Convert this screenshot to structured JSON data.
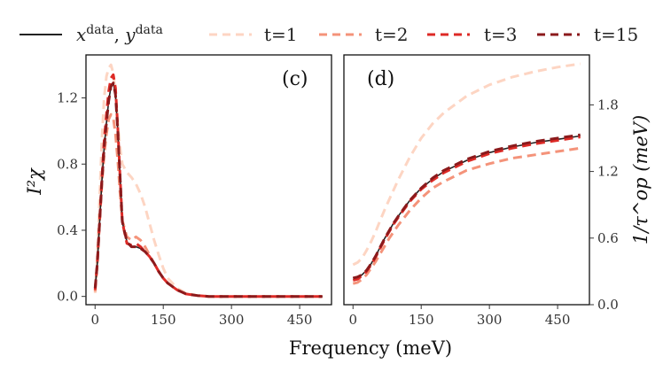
{
  "chart_data": [
    {
      "type": "line",
      "panel": "(c)",
      "xlabel": "Frequency (meV)",
      "ylabel": "I²χ",
      "xlim": [
        -20,
        520
      ],
      "ylim": [
        -0.05,
        1.46
      ],
      "xticks": [
        0,
        150,
        300,
        450
      ],
      "yticks": [
        0.0,
        0.4,
        0.8,
        1.2
      ],
      "ytick_labels": [
        "0.0",
        "0.4",
        "0.8",
        "1.2"
      ],
      "series": [
        {
          "name": "x^data, y^data",
          "color": "#222222",
          "dashed": false,
          "x": [
            0,
            5,
            10,
            15,
            20,
            25,
            30,
            35,
            40,
            45,
            50,
            55,
            60,
            70,
            80,
            90,
            100,
            110,
            120,
            130,
            140,
            150,
            160,
            180,
            200,
            225,
            250,
            300,
            400,
            500
          ],
          "y": [
            0.05,
            0.2,
            0.45,
            0.7,
            0.9,
            1.05,
            1.18,
            1.27,
            1.29,
            1.22,
            1.0,
            0.72,
            0.45,
            0.33,
            0.3,
            0.3,
            0.29,
            0.27,
            0.24,
            0.2,
            0.15,
            0.11,
            0.08,
            0.04,
            0.015,
            0.005,
            0.0,
            0.0,
            0.0,
            0.0
          ]
        },
        {
          "name": "t=1",
          "color": "#fdd5c3",
          "dashed": true,
          "x": [
            0,
            5,
            10,
            15,
            20,
            25,
            30,
            35,
            40,
            45,
            50,
            55,
            60,
            70,
            80,
            90,
            100,
            110,
            120,
            130,
            140,
            150,
            160,
            180,
            200,
            225,
            250,
            300,
            400,
            500
          ],
          "y": [
            0.02,
            0.25,
            0.6,
            0.95,
            1.2,
            1.33,
            1.38,
            1.4,
            1.35,
            1.22,
            1.05,
            0.9,
            0.8,
            0.75,
            0.72,
            0.68,
            0.62,
            0.54,
            0.44,
            0.34,
            0.25,
            0.17,
            0.11,
            0.05,
            0.02,
            0.005,
            0.0,
            0.0,
            0.0,
            0.0
          ]
        },
        {
          "name": "t=2",
          "color": "#f4937a",
          "dashed": true,
          "x": [
            0,
            5,
            10,
            15,
            20,
            25,
            30,
            35,
            40,
            45,
            50,
            55,
            60,
            70,
            80,
            90,
            100,
            110,
            120,
            130,
            140,
            150,
            160,
            180,
            200,
            225,
            250,
            300,
            400,
            500
          ],
          "y": [
            0.03,
            0.2,
            0.45,
            0.68,
            0.85,
            0.98,
            1.07,
            1.1,
            1.08,
            0.98,
            0.82,
            0.62,
            0.46,
            0.36,
            0.34,
            0.36,
            0.34,
            0.3,
            0.25,
            0.2,
            0.15,
            0.11,
            0.08,
            0.04,
            0.015,
            0.005,
            0.0,
            0.0,
            0.0,
            0.0
          ]
        },
        {
          "name": "t=3",
          "color": "#dd2a26",
          "dashed": true,
          "x": [
            0,
            5,
            10,
            15,
            20,
            25,
            30,
            35,
            40,
            45,
            50,
            55,
            60,
            70,
            80,
            90,
            100,
            110,
            120,
            130,
            140,
            150,
            160,
            180,
            200,
            225,
            250,
            300,
            400,
            500
          ],
          "y": [
            0.04,
            0.2,
            0.46,
            0.72,
            0.94,
            1.1,
            1.24,
            1.32,
            1.34,
            1.26,
            1.02,
            0.72,
            0.45,
            0.32,
            0.31,
            0.32,
            0.3,
            0.27,
            0.24,
            0.2,
            0.15,
            0.11,
            0.08,
            0.04,
            0.015,
            0.005,
            0.0,
            0.0,
            0.0,
            0.0
          ]
        },
        {
          "name": "t=15",
          "color": "#8b1a1c",
          "dashed": true,
          "x": [
            0,
            5,
            10,
            15,
            20,
            25,
            30,
            35,
            40,
            45,
            50,
            55,
            60,
            70,
            80,
            90,
            100,
            110,
            120,
            130,
            140,
            150,
            160,
            180,
            200,
            225,
            250,
            300,
            400,
            500
          ],
          "y": [
            0.05,
            0.2,
            0.45,
            0.7,
            0.9,
            1.05,
            1.18,
            1.27,
            1.29,
            1.22,
            1.0,
            0.72,
            0.45,
            0.33,
            0.3,
            0.3,
            0.29,
            0.27,
            0.24,
            0.2,
            0.15,
            0.11,
            0.08,
            0.04,
            0.015,
            0.005,
            0.0,
            0.0,
            0.0,
            0.0
          ]
        }
      ]
    },
    {
      "type": "line",
      "panel": "(d)",
      "xlabel": "Frequency (meV)",
      "ylabel": "1/τ^op (meV)",
      "xlim": [
        -20,
        520
      ],
      "ylim": [
        0.0,
        2.25
      ],
      "xticks": [
        0,
        150,
        300,
        450
      ],
      "yticks": [
        0.0,
        0.6,
        1.2,
        1.8
      ],
      "ytick_labels": [
        "0.0",
        "0.6",
        "1.2",
        "1.8"
      ],
      "yaxis_side": "right",
      "series": [
        {
          "name": "x^data, y^data",
          "color": "#222222",
          "dashed": false,
          "x": [
            0,
            10,
            20,
            30,
            40,
            50,
            60,
            70,
            80,
            90,
            100,
            125,
            150,
            175,
            200,
            250,
            300,
            350,
            400,
            450,
            500
          ],
          "y": [
            0.24,
            0.25,
            0.27,
            0.31,
            0.37,
            0.44,
            0.52,
            0.6,
            0.67,
            0.74,
            0.8,
            0.94,
            1.05,
            1.13,
            1.2,
            1.3,
            1.37,
            1.42,
            1.46,
            1.49,
            1.52
          ]
        },
        {
          "name": "t=1",
          "color": "#fdd5c3",
          "dashed": true,
          "x": [
            0,
            10,
            20,
            30,
            40,
            50,
            60,
            70,
            80,
            90,
            100,
            125,
            150,
            175,
            200,
            250,
            300,
            350,
            400,
            450,
            500
          ],
          "y": [
            0.36,
            0.38,
            0.42,
            0.49,
            0.57,
            0.66,
            0.76,
            0.86,
            0.95,
            1.04,
            1.13,
            1.33,
            1.5,
            1.63,
            1.73,
            1.88,
            1.98,
            2.05,
            2.1,
            2.14,
            2.17
          ]
        },
        {
          "name": "t=2",
          "color": "#f4937a",
          "dashed": true,
          "x": [
            0,
            10,
            20,
            30,
            40,
            50,
            60,
            70,
            80,
            90,
            100,
            125,
            150,
            175,
            200,
            250,
            300,
            350,
            400,
            450,
            500
          ],
          "y": [
            0.19,
            0.2,
            0.23,
            0.27,
            0.33,
            0.39,
            0.46,
            0.53,
            0.6,
            0.66,
            0.72,
            0.85,
            0.96,
            1.05,
            1.11,
            1.21,
            1.27,
            1.32,
            1.35,
            1.38,
            1.41
          ]
        },
        {
          "name": "t=3",
          "color": "#dd2a26",
          "dashed": true,
          "x": [
            0,
            10,
            20,
            30,
            40,
            50,
            60,
            70,
            80,
            90,
            100,
            125,
            150,
            175,
            200,
            250,
            300,
            350,
            400,
            450,
            500
          ],
          "y": [
            0.22,
            0.23,
            0.26,
            0.3,
            0.36,
            0.43,
            0.51,
            0.59,
            0.66,
            0.73,
            0.79,
            0.93,
            1.04,
            1.12,
            1.19,
            1.29,
            1.36,
            1.41,
            1.45,
            1.48,
            1.51
          ]
        },
        {
          "name": "t=15",
          "color": "#8b1a1c",
          "dashed": true,
          "x": [
            0,
            10,
            20,
            30,
            40,
            50,
            60,
            70,
            80,
            90,
            100,
            125,
            150,
            175,
            200,
            250,
            300,
            350,
            400,
            450,
            500
          ],
          "y": [
            0.24,
            0.25,
            0.27,
            0.31,
            0.37,
            0.44,
            0.52,
            0.6,
            0.67,
            0.74,
            0.8,
            0.94,
            1.05,
            1.14,
            1.21,
            1.31,
            1.38,
            1.43,
            1.47,
            1.5,
            1.53
          ]
        }
      ]
    }
  ],
  "legend": {
    "placement": "top",
    "entries": [
      {
        "label": "x^data, y^data",
        "color": "#222222",
        "dashed": false
      },
      {
        "label": "t=1",
        "color": "#fdd5c3",
        "dashed": true
      },
      {
        "label": "t=2",
        "color": "#f4937a",
        "dashed": true
      },
      {
        "label": "t=3",
        "color": "#dd2a26",
        "dashed": true
      },
      {
        "label": "t=15",
        "color": "#8b1a1c",
        "dashed": true
      }
    ]
  },
  "shared_xlabel": "Frequency (meV)"
}
